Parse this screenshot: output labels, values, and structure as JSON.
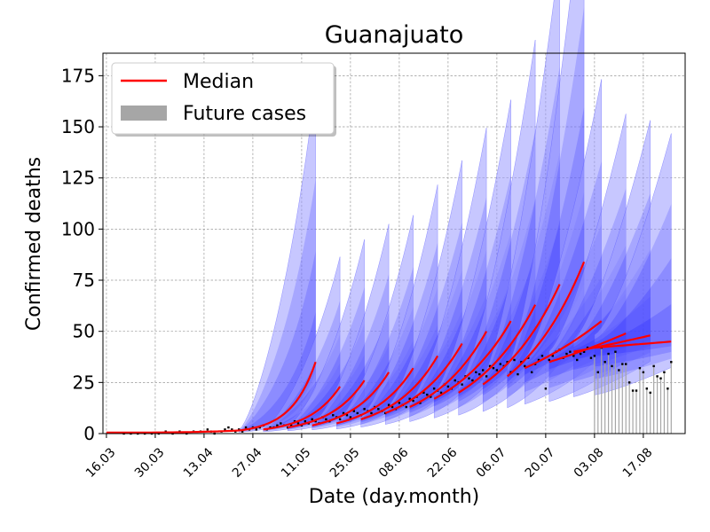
{
  "chart_data": {
    "type": "line",
    "title": "Guanajuato",
    "xlabel": "Date (day.month)",
    "ylabel": "Confirmed deaths",
    "x_tick_labels": [
      "16.03",
      "30.03",
      "13.04",
      "27.04",
      "11.05",
      "25.05",
      "08.06",
      "22.06",
      "06.07",
      "20.07",
      "03.08",
      "17.08"
    ],
    "y_tick_labels": [
      "0",
      "25",
      "50",
      "75",
      "100",
      "125",
      "150",
      "175"
    ],
    "x_tick_days": [
      0,
      14,
      28,
      42,
      56,
      70,
      84,
      98,
      112,
      126,
      140,
      154
    ],
    "xlim_days": [
      -1,
      166
    ],
    "ylim": [
      0,
      186
    ],
    "grid": true,
    "legend": {
      "placement": "upper-left",
      "entries": [
        {
          "label": "Median",
          "kind": "line",
          "color": "#ff0000"
        },
        {
          "label": "Future cases",
          "kind": "patch",
          "color": "#a6a6a6"
        }
      ]
    },
    "colors": {
      "median": "#ff0000",
      "band_inner": "#0000ff",
      "band_outer": "#9999ff",
      "future_bars": "#a6a6a6",
      "points": "#000000"
    },
    "forecasts": [
      {
        "start": 38,
        "end": 60,
        "m0": 1.5,
        "m1": 35,
        "low1": 12,
        "up1": 130
      },
      {
        "start": 45,
        "end": 67,
        "m0": 2,
        "m1": 23,
        "low1": 10,
        "up1": 60
      },
      {
        "start": 52,
        "end": 74,
        "m0": 3,
        "m1": 26,
        "low1": 12,
        "up1": 65
      },
      {
        "start": 59,
        "end": 81,
        "m0": 4,
        "m1": 30,
        "low1": 14,
        "up1": 68
      },
      {
        "start": 66,
        "end": 88,
        "m0": 5,
        "m1": 32,
        "low1": 15,
        "up1": 70
      },
      {
        "start": 73,
        "end": 95,
        "m0": 7,
        "m1": 38,
        "low1": 18,
        "up1": 78
      },
      {
        "start": 80,
        "end": 102,
        "m0": 10,
        "m1": 44,
        "low1": 22,
        "up1": 83
      },
      {
        "start": 87,
        "end": 109,
        "m0": 13,
        "m1": 50,
        "low1": 25,
        "up1": 92
      },
      {
        "start": 94,
        "end": 116,
        "m0": 17,
        "m1": 55,
        "low1": 28,
        "up1": 100
      },
      {
        "start": 101,
        "end": 123,
        "m0": 20,
        "m1": 63,
        "low1": 30,
        "up1": 120
      },
      {
        "start": 108,
        "end": 130,
        "m0": 24,
        "m1": 73,
        "low1": 32,
        "up1": 150
      },
      {
        "start": 115,
        "end": 137,
        "m0": 28,
        "m1": 84,
        "low1": 34,
        "up1": 176
      },
      {
        "start": 120,
        "end": 142,
        "m0": 32,
        "m1": 55,
        "low1": 25,
        "up1": 110
      },
      {
        "start": 127,
        "end": 149,
        "m0": 35,
        "m1": 49,
        "low1": 25,
        "up1": 100
      },
      {
        "start": 134,
        "end": 156,
        "m0": 40,
        "m1": 48,
        "low1": 25,
        "up1": 98
      },
      {
        "start": 140,
        "end": 162,
        "m0": 42,
        "m1": 45,
        "low1": 22,
        "up1": 95
      }
    ],
    "observed": [
      [
        5,
        0
      ],
      [
        7,
        0
      ],
      [
        9,
        0
      ],
      [
        11,
        0
      ],
      [
        13,
        0
      ],
      [
        15,
        0
      ],
      [
        17,
        1
      ],
      [
        19,
        0
      ],
      [
        21,
        1
      ],
      [
        23,
        0
      ],
      [
        25,
        1
      ],
      [
        27,
        1
      ],
      [
        29,
        2
      ],
      [
        30,
        1
      ],
      [
        31,
        0
      ],
      [
        33,
        1
      ],
      [
        34,
        2
      ],
      [
        35,
        3
      ],
      [
        36,
        2
      ],
      [
        37,
        1
      ],
      [
        38,
        2
      ],
      [
        39,
        1
      ],
      [
        40,
        3
      ],
      [
        41,
        2
      ],
      [
        42,
        3
      ],
      [
        43,
        2
      ],
      [
        44,
        3
      ],
      [
        45,
        4
      ],
      [
        46,
        2
      ],
      [
        47,
        3
      ],
      [
        48,
        3
      ],
      [
        49,
        4
      ],
      [
        50,
        5
      ],
      [
        51,
        4
      ],
      [
        52,
        3
      ],
      [
        53,
        4
      ],
      [
        54,
        6
      ],
      [
        55,
        5
      ],
      [
        56,
        4
      ],
      [
        57,
        6
      ],
      [
        58,
        5
      ],
      [
        59,
        7
      ],
      [
        60,
        6
      ],
      [
        61,
        5
      ],
      [
        62,
        8
      ],
      [
        63,
        7
      ],
      [
        64,
        6
      ],
      [
        65,
        9
      ],
      [
        66,
        8
      ],
      [
        67,
        7
      ],
      [
        68,
        10
      ],
      [
        69,
        9
      ],
      [
        70,
        8
      ],
      [
        71,
        11
      ],
      [
        72,
        10
      ],
      [
        73,
        9
      ],
      [
        74,
        12
      ],
      [
        75,
        11
      ],
      [
        76,
        10
      ],
      [
        77,
        13
      ],
      [
        78,
        12
      ],
      [
        79,
        11
      ],
      [
        80,
        10
      ],
      [
        81,
        14
      ],
      [
        82,
        13
      ],
      [
        83,
        12
      ],
      [
        84,
        15
      ],
      [
        85,
        14
      ],
      [
        86,
        13
      ],
      [
        87,
        17
      ],
      [
        88,
        16
      ],
      [
        89,
        18
      ],
      [
        90,
        15
      ],
      [
        91,
        20
      ],
      [
        92,
        19
      ],
      [
        93,
        18
      ],
      [
        94,
        22
      ],
      [
        95,
        21
      ],
      [
        96,
        20
      ],
      [
        97,
        24
      ],
      [
        98,
        23
      ],
      [
        99,
        22
      ],
      [
        100,
        26
      ],
      [
        101,
        25
      ],
      [
        102,
        24
      ],
      [
        103,
        28
      ],
      [
        104,
        27
      ],
      [
        105,
        26
      ],
      [
        106,
        30
      ],
      [
        107,
        29
      ],
      [
        108,
        31
      ],
      [
        109,
        28
      ],
      [
        110,
        33
      ],
      [
        111,
        32
      ],
      [
        112,
        31
      ],
      [
        113,
        34
      ],
      [
        114,
        33
      ],
      [
        115,
        35
      ],
      [
        116,
        30
      ],
      [
        117,
        36
      ],
      [
        118,
        29
      ],
      [
        119,
        35
      ],
      [
        120,
        33
      ],
      [
        121,
        37
      ],
      [
        122,
        30
      ],
      [
        123,
        34
      ],
      [
        124,
        36
      ],
      [
        125,
        38
      ],
      [
        126,
        22
      ],
      [
        127,
        36
      ],
      [
        128,
        38
      ],
      [
        129,
        40
      ],
      [
        130,
        41
      ],
      [
        131,
        37
      ],
      [
        132,
        39
      ],
      [
        133,
        40
      ],
      [
        134,
        38
      ],
      [
        135,
        36
      ],
      [
        136,
        39
      ],
      [
        137,
        40
      ],
      [
        138,
        42
      ],
      [
        139,
        37
      ]
    ],
    "future": [
      [
        140,
        38
      ],
      [
        141,
        30
      ],
      [
        142,
        42
      ],
      [
        143,
        35
      ],
      [
        144,
        39
      ],
      [
        145,
        33
      ],
      [
        146,
        40
      ],
      [
        147,
        31
      ],
      [
        148,
        34
      ],
      [
        149,
        34
      ],
      [
        150,
        25
      ],
      [
        151,
        21
      ],
      [
        152,
        21
      ],
      [
        153,
        32
      ],
      [
        154,
        30
      ],
      [
        155,
        22
      ],
      [
        156,
        20
      ],
      [
        157,
        33
      ],
      [
        158,
        28
      ],
      [
        159,
        27
      ],
      [
        160,
        30
      ],
      [
        161,
        22
      ],
      [
        162,
        35
      ]
    ]
  }
}
